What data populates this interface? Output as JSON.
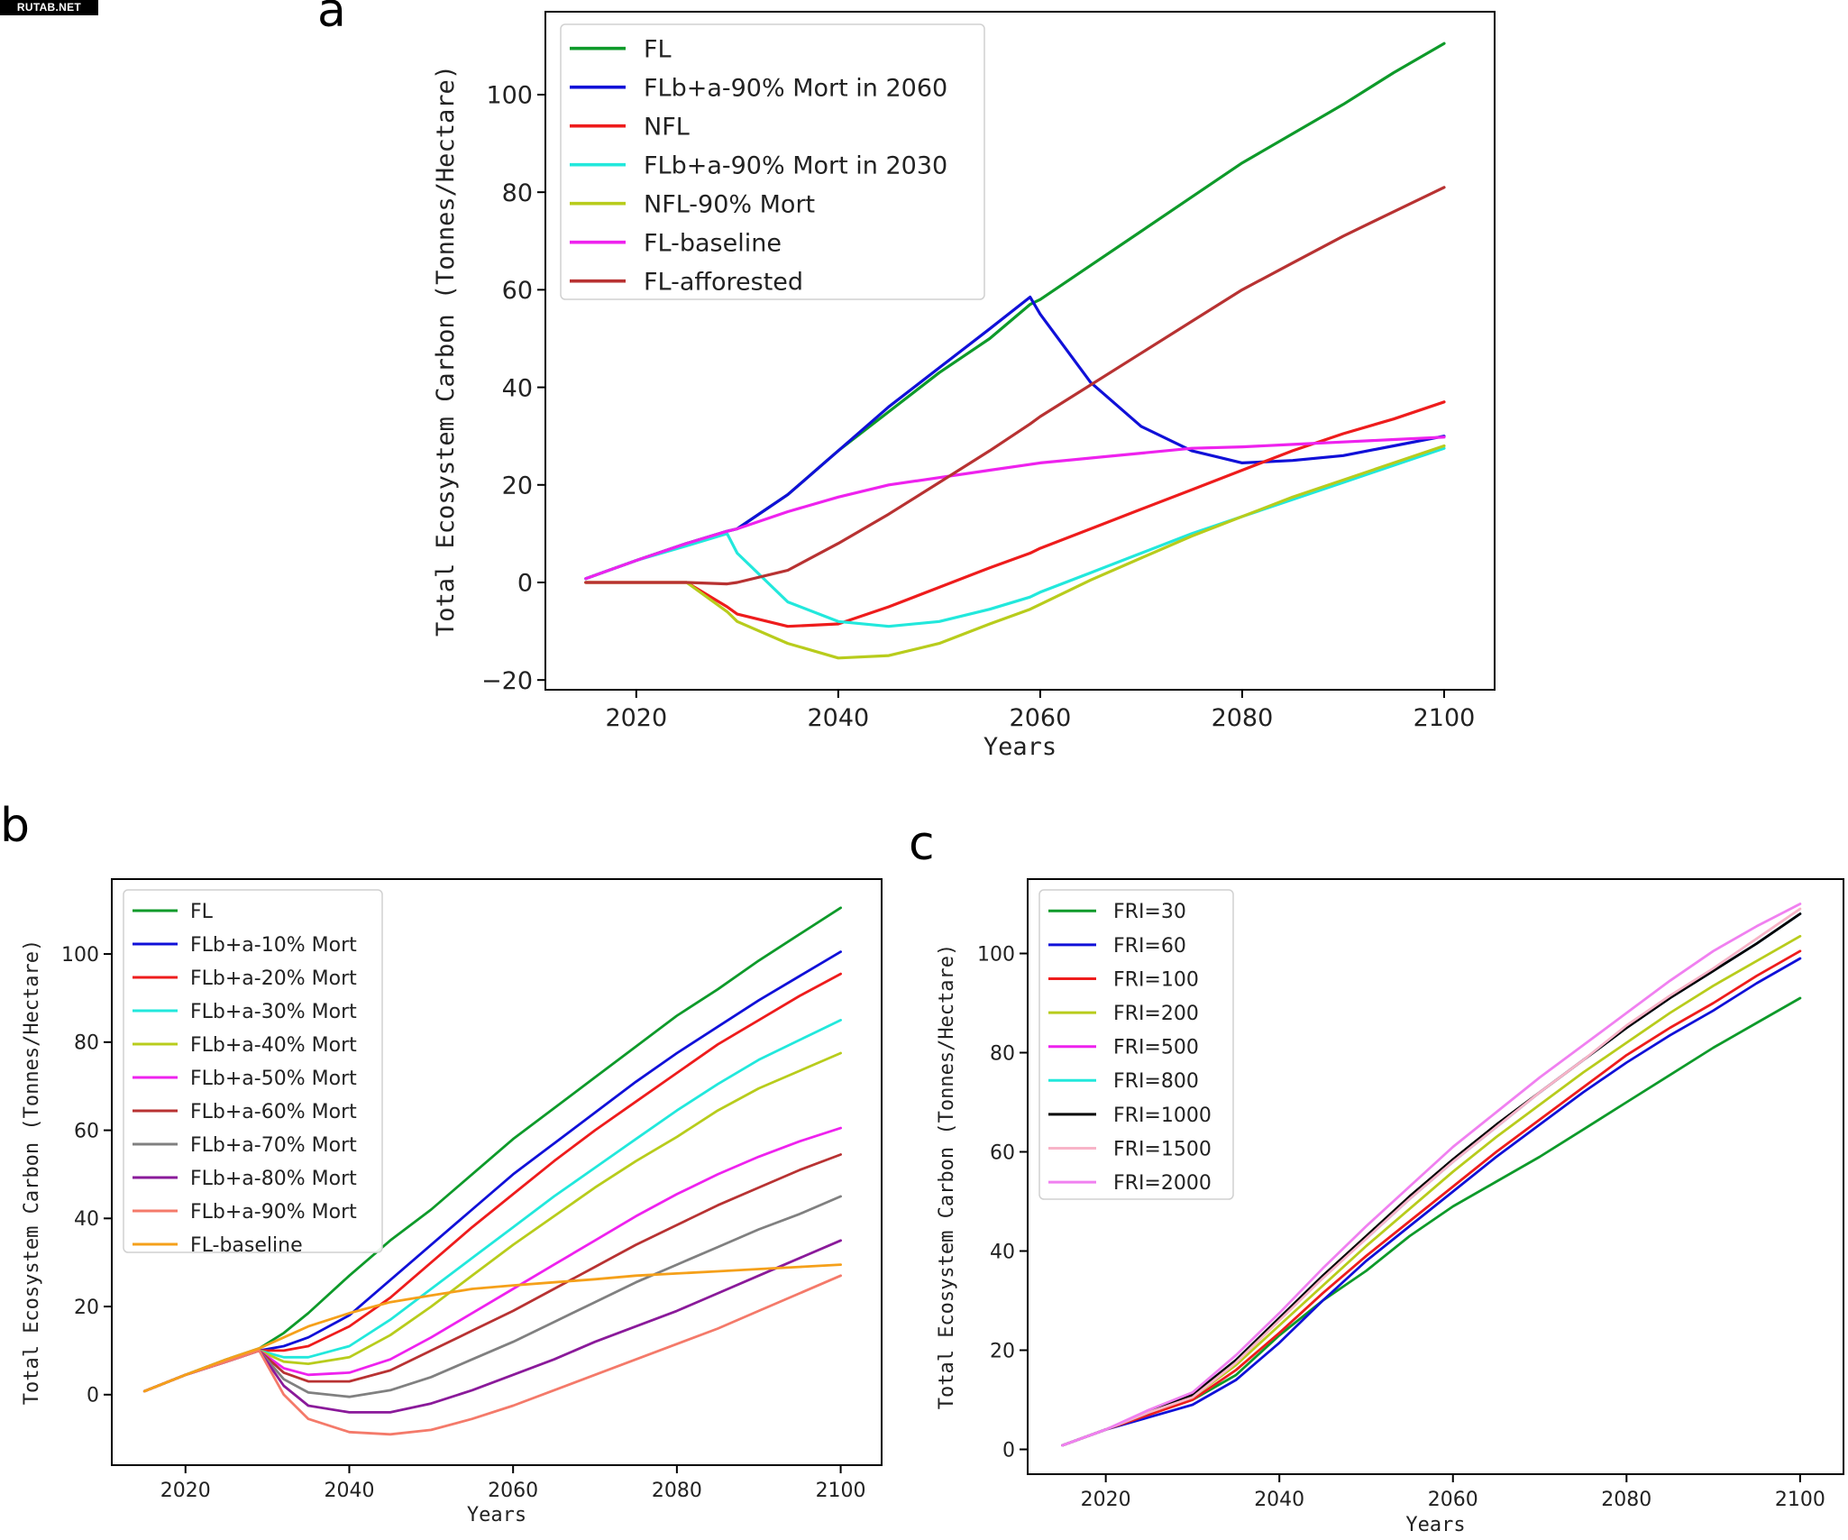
{
  "watermark": "RUTAB.NET",
  "chart_data": [
    {
      "panel": "a",
      "type": "line",
      "title": "",
      "xlabel": "Years",
      "ylabel": "Total Ecosystem Carbon (Tonnes/Hectare)",
      "xlim": [
        2011,
        2105
      ],
      "ylim": [
        -22,
        117
      ],
      "xticks": [
        2020,
        2040,
        2060,
        2080,
        2100
      ],
      "yticks": [
        -20,
        0,
        20,
        40,
        60,
        80,
        100
      ],
      "ytick_labels": [
        "−20",
        "0",
        "20",
        "40",
        "60",
        "80",
        "100"
      ],
      "grid": false,
      "legend_position": "top-left",
      "x": [
        2015,
        2020,
        2025,
        2029,
        2030,
        2035,
        2040,
        2045,
        2050,
        2055,
        2059,
        2060,
        2065,
        2070,
        2075,
        2080,
        2085,
        2090,
        2095,
        2100
      ],
      "series": [
        {
          "name": "FL",
          "color": "#0e9a2a",
          "values": [
            0.8,
            4.5,
            8,
            10.5,
            11,
            18,
            27,
            35,
            43,
            50,
            57,
            58,
            65,
            72,
            79,
            86,
            92,
            98,
            104.5,
            110.5
          ]
        },
        {
          "name": "FLb+a-90% Mort in 2060",
          "color": "#1010d8",
          "values": [
            0.8,
            4.5,
            8,
            10.5,
            11,
            18,
            27,
            36,
            44,
            52,
            58.5,
            55,
            41,
            32,
            27,
            24.5,
            25,
            26,
            28,
            30
          ]
        },
        {
          "name": "NFL",
          "color": "#ee1c1c",
          "values": [
            0,
            0,
            0,
            -5,
            -6.5,
            -9,
            -8.5,
            -5,
            -1,
            3,
            6,
            7,
            11,
            15,
            19,
            23,
            27,
            30.5,
            33.5,
            37
          ]
        },
        {
          "name": "FLb+a-90% Mort in 2030",
          "color": "#22e8dc",
          "values": [
            0.8,
            4.5,
            7.5,
            10,
            6,
            -4,
            -8,
            -9,
            -8,
            -5.5,
            -3,
            -2,
            2,
            6,
            10,
            13.5,
            17,
            20.5,
            24,
            27.5
          ]
        },
        {
          "name": "NFL-90% Mort",
          "color": "#b8cc1c",
          "values": [
            0,
            0,
            0,
            -6,
            -8,
            -12.5,
            -15.5,
            -15,
            -12.5,
            -8.5,
            -5.5,
            -4.5,
            0.5,
            5,
            9.5,
            13.5,
            17.5,
            21,
            24.5,
            28
          ]
        },
        {
          "name": "FL-baseline",
          "color": "#ee22ee",
          "values": [
            0.8,
            4.5,
            8,
            10.5,
            11,
            14.5,
            17.5,
            20,
            21.5,
            23,
            24.2,
            24.5,
            25.5,
            26.5,
            27.5,
            27.8,
            28.3,
            28.8,
            29.3,
            29.8
          ]
        },
        {
          "name": "FL-afforested",
          "color": "#b83232",
          "values": [
            0,
            0,
            0,
            -0.3,
            0,
            2.5,
            8,
            14,
            20.5,
            27,
            32.5,
            34,
            40.5,
            47,
            53.5,
            60,
            65.5,
            71,
            76,
            81
          ]
        }
      ]
    },
    {
      "panel": "b",
      "type": "line",
      "title": "",
      "xlabel": "Years",
      "ylabel": "Total Ecosystem Carbon (Tonnes/Hectare)",
      "xlim": [
        2011,
        2105
      ],
      "ylim": [
        -16,
        117
      ],
      "xticks": [
        2020,
        2040,
        2060,
        2080,
        2100
      ],
      "yticks": [
        0,
        20,
        40,
        60,
        80,
        100
      ],
      "ytick_labels": [
        "0",
        "20",
        "40",
        "60",
        "80",
        "100"
      ],
      "grid": false,
      "legend_position": "top-left",
      "x": [
        2015,
        2020,
        2025,
        2029,
        2032,
        2035,
        2040,
        2045,
        2050,
        2055,
        2060,
        2065,
        2070,
        2075,
        2080,
        2085,
        2090,
        2095,
        2100
      ],
      "series": [
        {
          "name": "FL",
          "color": "#0e9a2a",
          "values": [
            0.8,
            4.5,
            8,
            10.5,
            14,
            18.5,
            27,
            35,
            42,
            50,
            58,
            65,
            72,
            79,
            86,
            92,
            98.5,
            104.5,
            110.5
          ]
        },
        {
          "name": "FLb+a-10% Mort",
          "color": "#1010d8",
          "values": [
            0.8,
            4.5,
            7.5,
            10,
            11,
            13,
            18,
            26,
            34,
            42,
            50,
            57,
            64,
            71,
            77.5,
            83.5,
            89.5,
            95,
            100.5
          ]
        },
        {
          "name": "FLb+a-20% Mort",
          "color": "#ee1c1c",
          "values": [
            0.8,
            4.5,
            7.5,
            10,
            10,
            11,
            15.5,
            22,
            30,
            38,
            45.5,
            53,
            60,
            66.5,
            73,
            79.5,
            85,
            90.5,
            95.5
          ]
        },
        {
          "name": "FLb+a-30% Mort",
          "color": "#22e8dc",
          "values": [
            0.8,
            4.5,
            7.5,
            10,
            8.5,
            8.5,
            11,
            17,
            24,
            31,
            38,
            45,
            51.5,
            58,
            64.5,
            70.5,
            76,
            80.5,
            85
          ]
        },
        {
          "name": "FLb+a-40% Mort",
          "color": "#b8cc1c",
          "values": [
            0.8,
            4.5,
            7.5,
            10,
            7.5,
            7,
            8.5,
            13.5,
            20,
            27,
            34,
            40.5,
            47,
            53,
            58.5,
            64.5,
            69.5,
            73.5,
            77.5
          ]
        },
        {
          "name": "FLb+a-50% Mort",
          "color": "#ee22ee",
          "values": [
            0.8,
            4.5,
            7.5,
            10,
            6,
            4.5,
            5,
            8,
            13,
            18.5,
            24,
            29.5,
            35,
            40.5,
            45.5,
            50,
            54,
            57.5,
            60.5
          ]
        },
        {
          "name": "FLb+a-60% Mort",
          "color": "#b83232",
          "values": [
            0.8,
            4.5,
            7.5,
            10,
            5,
            3,
            3,
            5.5,
            10,
            14.5,
            19,
            24,
            29,
            34,
            38.5,
            43,
            47,
            51,
            54.5
          ]
        },
        {
          "name": "FLb+a-70% Mort",
          "color": "#808080",
          "values": [
            0.8,
            4.5,
            7.5,
            10,
            3.5,
            0.5,
            -0.5,
            1,
            4,
            8,
            12,
            16.5,
            21,
            25.5,
            29.5,
            33.5,
            37.5,
            41,
            45
          ]
        },
        {
          "name": "FLb+a-80% Mort",
          "color": "#8a1a9a",
          "values": [
            0.8,
            4.5,
            7.5,
            10,
            2,
            -2.5,
            -4,
            -4,
            -2,
            1,
            4.5,
            8,
            12,
            15.5,
            19,
            23,
            27,
            31,
            35
          ]
        },
        {
          "name": "FLb+a-90% Mort",
          "color": "#f47a6a",
          "values": [
            0.8,
            4.5,
            7.5,
            10,
            0,
            -5.5,
            -8.5,
            -9,
            -8,
            -5.5,
            -2.5,
            1,
            4.5,
            8,
            11.5,
            15,
            19,
            23,
            27
          ]
        },
        {
          "name": "FL-baseline",
          "color": "#f5a01a",
          "values": [
            0.8,
            4.5,
            8,
            10.5,
            13,
            15.5,
            18.5,
            21,
            22.5,
            24,
            24.8,
            25.5,
            26.2,
            27,
            27.5,
            28,
            28.5,
            29,
            29.5
          ]
        }
      ]
    },
    {
      "panel": "c",
      "type": "line",
      "title": "",
      "xlabel": "Years",
      "ylabel": "Total Ecosystem Carbon (Tonnes/Hectare)",
      "xlim": [
        2011,
        2105
      ],
      "ylim": [
        -5,
        115
      ],
      "xticks": [
        2020,
        2040,
        2060,
        2080,
        2100
      ],
      "yticks": [
        0,
        20,
        40,
        60,
        80,
        100
      ],
      "ytick_labels": [
        "0",
        "20",
        "40",
        "60",
        "80",
        "100"
      ],
      "grid": false,
      "legend_position": "top-left",
      "x": [
        2015,
        2020,
        2025,
        2030,
        2035,
        2040,
        2045,
        2050,
        2055,
        2060,
        2065,
        2070,
        2075,
        2080,
        2085,
        2090,
        2095,
        2100
      ],
      "series": [
        {
          "name": "FRI=30",
          "color": "#0e9a2a",
          "values": [
            0.8,
            4,
            7.5,
            10,
            15,
            23,
            30,
            36,
            43,
            49,
            54,
            59,
            64.5,
            70,
            75.5,
            81,
            86,
            91
          ]
        },
        {
          "name": "FRI=60",
          "color": "#1010d8",
          "values": [
            0.8,
            4,
            6.5,
            9,
            14,
            21.5,
            30,
            38,
            45,
            52,
            59,
            65.5,
            72,
            78,
            83.5,
            88.5,
            94,
            99
          ]
        },
        {
          "name": "FRI=100",
          "color": "#ee1c1c",
          "values": [
            0.8,
            4,
            7,
            10,
            16,
            23.5,
            31.5,
            39,
            46,
            53,
            60,
            66.5,
            73,
            79.5,
            85,
            90,
            95.5,
            100.5
          ]
        },
        {
          "name": "FRI=200",
          "color": "#b8cc1c",
          "values": [
            0.8,
            4,
            7.5,
            10.5,
            17,
            25,
            33,
            41,
            48.5,
            56,
            63,
            69.5,
            76,
            82,
            88,
            93.5,
            98.5,
            103.5
          ]
        },
        {
          "name": "FRI=500",
          "color": "#ee22ee",
          "values": [
            0.8,
            4,
            7.5,
            11,
            18,
            26.5,
            35,
            42.5,
            50.5,
            58,
            65,
            72,
            78.5,
            85,
            91,
            96.5,
            102,
            108
          ]
        },
        {
          "name": "FRI=800",
          "color": "#22e8dc",
          "values": [
            0.8,
            4,
            7.5,
            11,
            18,
            26.5,
            35,
            42.5,
            50.5,
            58,
            65,
            72,
            78.5,
            85,
            91,
            96.5,
            102,
            108
          ]
        },
        {
          "name": "FRI=1000",
          "color": "#000000",
          "values": [
            0.8,
            4,
            7.5,
            11,
            18,
            26.5,
            35,
            43,
            51,
            58.5,
            65.5,
            72,
            78.5,
            85,
            91,
            96.5,
            102,
            108
          ]
        },
        {
          "name": "FRI=1500",
          "color": "#f8b4c8",
          "values": [
            0.8,
            4,
            7.5,
            10.5,
            17.5,
            26,
            34.5,
            42.5,
            50.5,
            58,
            65,
            72,
            78.5,
            85.5,
            91.5,
            97,
            103,
            109
          ]
        },
        {
          "name": "FRI=2000",
          "color": "#f080f0",
          "values": [
            0.8,
            4,
            8,
            11.5,
            19,
            27.5,
            36.5,
            45,
            53,
            61,
            68,
            75,
            81.5,
            88,
            94.5,
            100.5,
            105.5,
            110
          ]
        }
      ]
    }
  ]
}
